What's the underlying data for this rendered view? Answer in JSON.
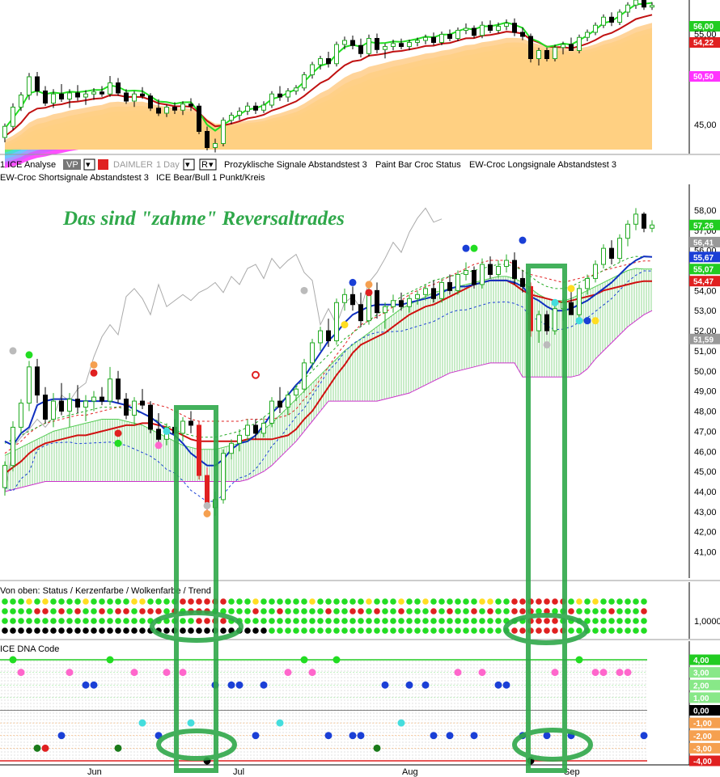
{
  "panels": {
    "top": {
      "y_ticks": [
        "56,00",
        "55,00",
        "50,00",
        "45,00"
      ],
      "price_tags": [
        {
          "text": "56,00",
          "color": "#22cc22"
        },
        {
          "text": "54,22",
          "color": "#e02020"
        },
        {
          "text": "50,50",
          "color": "#ff33ff"
        }
      ]
    },
    "toolbar": {
      "row1": [
        "1 ICE Analyse",
        "VP",
        "DAIMLER",
        "1 Day",
        "R",
        "Prozyklische Signale Abstandstest 3",
        "Paint Bar Croc Status",
        "EW-Croc Longsignale Abstandstest 3"
      ],
      "row2": [
        "EW-Croc Shortsignale Abstandstest 3",
        "ICE Bear/Bull 1 Punkt/Kreis"
      ]
    },
    "main": {
      "annotation": "Das sind \"zahme\" Reversaltrades",
      "y_ticks": [
        "58,00",
        "57,00",
        "56,00",
        "55,00",
        "54,00",
        "53,00",
        "52,00",
        "51,00",
        "50,00",
        "49,00",
        "48,00",
        "47,00",
        "46,00",
        "45,00",
        "44,00",
        "43,00",
        "42,00",
        "41,00"
      ],
      "price_tags": [
        {
          "text": "57,26",
          "color": "#22cc22"
        },
        {
          "text": "56,41",
          "color": "#999999"
        },
        {
          "text": "55,67",
          "color": "#1a3fd6"
        },
        {
          "text": "55,07",
          "color": "#22cc22"
        },
        {
          "text": "54,47",
          "color": "#e02020"
        },
        {
          "text": "51,59",
          "color": "#999999"
        }
      ]
    },
    "status": {
      "title": "Von oben: Status / Kerzenfarbe / Wolkenfarbe / Trend",
      "y_tick": "1,0000"
    },
    "dna": {
      "title": "ICE DNA Code",
      "levels": [
        {
          "text": "4,00",
          "color": "#22cc22"
        },
        {
          "text": "3,00",
          "color": "#88e888"
        },
        {
          "text": "2,00",
          "color": "#88e888"
        },
        {
          "text": "1,00",
          "color": "#88e888"
        },
        {
          "text": "0,00",
          "color": "#000000"
        },
        {
          "text": "-1,00",
          "color": "#f5a050"
        },
        {
          "text": "-2,00",
          "color": "#f5a050"
        },
        {
          "text": "-3,00",
          "color": "#f5a050"
        },
        {
          "text": "-4,00",
          "color": "#e02020"
        }
      ]
    }
  },
  "x_axis": [
    "Jun",
    "Jul",
    "Aug",
    "Sep"
  ],
  "chart_data": {
    "type": "candlestick",
    "ylim_main": [
      40.5,
      58.8
    ],
    "ylim_top": [
      43,
      57
    ],
    "candles": [
      {
        "o": 44.2,
        "h": 45.5,
        "l": 43.8,
        "c": 45.3
      },
      {
        "o": 45.3,
        "h": 47.5,
        "l": 45.0,
        "c": 47.2
      },
      {
        "o": 47.2,
        "h": 48.6,
        "l": 46.9,
        "c": 48.4
      },
      {
        "o": 48.4,
        "h": 50.5,
        "l": 48.0,
        "c": 50.2
      },
      {
        "o": 50.2,
        "h": 50.6,
        "l": 48.4,
        "c": 48.8
      },
      {
        "o": 48.8,
        "h": 49.2,
        "l": 47.4,
        "c": 47.6
      },
      {
        "o": 47.6,
        "h": 48.9,
        "l": 47.2,
        "c": 48.5
      },
      {
        "o": 48.5,
        "h": 49.4,
        "l": 47.8,
        "c": 48.0
      },
      {
        "o": 48.0,
        "h": 48.9,
        "l": 47.2,
        "c": 48.6
      },
      {
        "o": 48.6,
        "h": 49.3,
        "l": 47.9,
        "c": 48.2
      },
      {
        "o": 48.2,
        "h": 48.8,
        "l": 47.5,
        "c": 48.5
      },
      {
        "o": 48.5,
        "h": 49.0,
        "l": 48.0,
        "c": 48.7
      },
      {
        "o": 48.7,
        "h": 49.2,
        "l": 48.3,
        "c": 48.5
      },
      {
        "o": 48.5,
        "h": 50.2,
        "l": 48.3,
        "c": 49.6
      },
      {
        "o": 49.6,
        "h": 50.0,
        "l": 48.4,
        "c": 48.6
      },
      {
        "o": 48.6,
        "h": 48.9,
        "l": 47.6,
        "c": 47.8
      },
      {
        "o": 47.8,
        "h": 48.7,
        "l": 47.3,
        "c": 48.5
      },
      {
        "o": 48.5,
        "h": 49.1,
        "l": 48.1,
        "c": 48.3
      },
      {
        "o": 48.3,
        "h": 48.5,
        "l": 46.9,
        "c": 47.1
      },
      {
        "o": 47.1,
        "h": 47.9,
        "l": 46.4,
        "c": 46.6
      },
      {
        "o": 46.6,
        "h": 47.4,
        "l": 46.3,
        "c": 47.2
      },
      {
        "o": 47.2,
        "h": 47.6,
        "l": 46.6,
        "c": 46.9
      },
      {
        "o": 46.9,
        "h": 47.7,
        "l": 46.5,
        "c": 47.5
      },
      {
        "o": 47.5,
        "h": 48.0,
        "l": 46.9,
        "c": 47.3
      },
      {
        "o": 47.3,
        "h": 47.5,
        "l": 44.6,
        "c": 44.8
      },
      {
        "o": 44.8,
        "h": 45.2,
        "l": 43.0,
        "c": 43.2
      },
      {
        "o": 43.2,
        "h": 44.0,
        "l": 42.8,
        "c": 43.6
      },
      {
        "o": 43.6,
        "h": 46.1,
        "l": 43.4,
        "c": 45.9
      },
      {
        "o": 45.9,
        "h": 46.6,
        "l": 45.6,
        "c": 46.4
      },
      {
        "o": 46.4,
        "h": 47.1,
        "l": 46.0,
        "c": 46.8
      },
      {
        "o": 46.8,
        "h": 47.6,
        "l": 46.5,
        "c": 47.3
      },
      {
        "o": 47.3,
        "h": 47.6,
        "l": 46.6,
        "c": 46.9
      },
      {
        "o": 46.9,
        "h": 47.7,
        "l": 46.7,
        "c": 47.4
      },
      {
        "o": 47.4,
        "h": 48.7,
        "l": 47.2,
        "c": 48.5
      },
      {
        "o": 48.5,
        "h": 49.2,
        "l": 47.9,
        "c": 48.2
      },
      {
        "o": 48.2,
        "h": 49.0,
        "l": 47.8,
        "c": 48.8
      },
      {
        "o": 48.8,
        "h": 49.3,
        "l": 48.5,
        "c": 49.1
      },
      {
        "o": 49.1,
        "h": 50.6,
        "l": 48.9,
        "c": 50.4
      },
      {
        "o": 50.4,
        "h": 51.6,
        "l": 50.1,
        "c": 51.4
      },
      {
        "o": 51.4,
        "h": 52.2,
        "l": 51.0,
        "c": 52.0
      },
      {
        "o": 52.0,
        "h": 52.6,
        "l": 51.2,
        "c": 51.5
      },
      {
        "o": 51.5,
        "h": 53.6,
        "l": 51.3,
        "c": 53.4
      },
      {
        "o": 53.4,
        "h": 54.1,
        "l": 53.0,
        "c": 53.8
      },
      {
        "o": 53.8,
        "h": 54.2,
        "l": 53.0,
        "c": 53.3
      },
      {
        "o": 53.3,
        "h": 53.9,
        "l": 52.2,
        "c": 52.5
      },
      {
        "o": 52.5,
        "h": 54.3,
        "l": 52.3,
        "c": 54.0
      },
      {
        "o": 54.0,
        "h": 54.4,
        "l": 52.6,
        "c": 52.9
      },
      {
        "o": 52.9,
        "h": 53.4,
        "l": 52.1,
        "c": 53.2
      },
      {
        "o": 53.2,
        "h": 53.8,
        "l": 52.9,
        "c": 53.5
      },
      {
        "o": 53.5,
        "h": 53.9,
        "l": 53.0,
        "c": 53.2
      },
      {
        "o": 53.2,
        "h": 53.8,
        "l": 52.9,
        "c": 53.6
      },
      {
        "o": 53.6,
        "h": 54.0,
        "l": 53.3,
        "c": 53.8
      },
      {
        "o": 53.8,
        "h": 54.3,
        "l": 53.5,
        "c": 54.1
      },
      {
        "o": 54.1,
        "h": 54.5,
        "l": 53.4,
        "c": 53.6
      },
      {
        "o": 53.6,
        "h": 54.6,
        "l": 53.4,
        "c": 54.4
      },
      {
        "o": 54.4,
        "h": 54.8,
        "l": 53.8,
        "c": 54.0
      },
      {
        "o": 54.0,
        "h": 55.0,
        "l": 53.8,
        "c": 54.8
      },
      {
        "o": 54.8,
        "h": 55.4,
        "l": 54.5,
        "c": 55.0
      },
      {
        "o": 55.0,
        "h": 55.2,
        "l": 54.1,
        "c": 54.3
      },
      {
        "o": 54.3,
        "h": 55.6,
        "l": 54.1,
        "c": 55.3
      },
      {
        "o": 55.3,
        "h": 55.7,
        "l": 54.6,
        "c": 54.8
      },
      {
        "o": 54.8,
        "h": 55.5,
        "l": 54.6,
        "c": 55.2
      },
      {
        "o": 55.2,
        "h": 55.8,
        "l": 54.9,
        "c": 55.5
      },
      {
        "o": 55.5,
        "h": 55.9,
        "l": 54.3,
        "c": 54.6
      },
      {
        "o": 54.6,
        "h": 55.0,
        "l": 53.9,
        "c": 54.2
      },
      {
        "o": 54.2,
        "h": 54.4,
        "l": 51.7,
        "c": 52.0
      },
      {
        "o": 52.0,
        "h": 53.0,
        "l": 51.4,
        "c": 52.8
      },
      {
        "o": 52.8,
        "h": 53.0,
        "l": 51.8,
        "c": 52.0
      },
      {
        "o": 52.0,
        "h": 53.3,
        "l": 51.8,
        "c": 53.1
      },
      {
        "o": 53.1,
        "h": 53.6,
        "l": 52.5,
        "c": 53.4
      },
      {
        "o": 53.4,
        "h": 54.0,
        "l": 52.9,
        "c": 52.8
      },
      {
        "o": 52.8,
        "h": 54.3,
        "l": 52.6,
        "c": 54.1
      },
      {
        "o": 54.1,
        "h": 54.8,
        "l": 53.8,
        "c": 54.6
      },
      {
        "o": 54.6,
        "h": 55.5,
        "l": 54.4,
        "c": 55.3
      },
      {
        "o": 55.3,
        "h": 56.3,
        "l": 55.1,
        "c": 56.1
      },
      {
        "o": 56.1,
        "h": 56.5,
        "l": 55.3,
        "c": 55.6
      },
      {
        "o": 55.6,
        "h": 56.8,
        "l": 55.4,
        "c": 56.6
      },
      {
        "o": 56.6,
        "h": 57.5,
        "l": 56.2,
        "c": 57.3
      },
      {
        "o": 57.3,
        "h": 58.1,
        "l": 57.0,
        "c": 57.8
      },
      {
        "o": 57.8,
        "h": 57.9,
        "l": 56.9,
        "c": 57.1
      },
      {
        "o": 57.1,
        "h": 57.5,
        "l": 56.9,
        "c": 57.26
      }
    ],
    "main_lines": {
      "blue_solid": [
        46.5,
        46.3,
        46.9,
        47.2,
        48.3,
        48.5,
        48.6,
        48.6,
        48.6,
        48.5,
        48.5,
        48.5,
        48.5,
        48.5,
        48.4,
        48.3,
        48.1,
        47.9,
        47.7,
        47.4,
        47.0,
        46.8,
        46.4,
        45.9,
        45.6,
        45.3,
        45.3,
        45.6,
        46.1,
        46.4,
        46.5,
        46.8,
        47.3,
        47.9,
        48.3,
        48.8,
        49.3,
        49.7,
        50.3,
        50.9,
        51.5,
        51.9,
        52.4,
        52.8,
        53.0,
        53.2,
        53.3,
        53.3,
        53.3,
        53.3,
        53.4,
        53.5,
        53.6,
        53.7,
        53.9,
        54.1,
        54.2,
        54.2,
        54.3,
        54.4,
        54.5,
        54.5,
        54.5,
        54.4,
        54.2,
        53.7,
        53.5,
        53.2,
        53.0,
        53.0,
        53.1,
        53.3,
        53.5,
        53.8,
        54.1,
        54.4,
        54.8,
        55.2,
        55.5,
        55.7,
        55.67
      ],
      "red_solid": [
        44.9,
        45.2,
        45.5,
        45.9,
        46.2,
        46.4,
        46.5,
        46.6,
        46.7,
        46.8,
        46.8,
        46.9,
        47.0,
        47.1,
        47.2,
        47.3,
        47.3,
        47.4,
        47.4,
        47.3,
        47.2,
        47.0,
        46.8,
        46.6,
        46.5,
        46.5,
        46.5,
        46.5,
        46.5,
        46.5,
        46.6,
        46.6,
        46.6,
        46.6,
        46.7,
        46.8,
        47.1,
        47.6,
        48.0,
        48.6,
        49.2,
        49.8,
        50.3,
        50.9,
        51.3,
        51.5,
        51.7,
        51.9,
        52.2,
        52.5,
        52.8,
        53.0,
        53.2,
        53.3,
        53.5,
        53.7,
        53.9,
        54.1,
        54.3,
        54.4,
        54.5,
        54.5,
        54.5,
        54.3,
        54.0,
        53.8,
        53.7,
        53.6,
        53.5,
        53.4,
        53.5,
        53.6,
        53.7,
        53.8,
        54.0,
        54.1,
        54.2,
        54.3,
        54.4,
        54.47,
        54.47
      ],
      "cloud_upper": [
        45.8,
        46.0,
        46.2,
        46.4,
        46.6,
        46.8,
        47.0,
        47.1,
        47.2,
        47.3,
        47.4,
        47.5,
        47.6,
        47.6,
        47.6,
        47.5,
        47.4,
        47.3,
        47.1,
        46.9,
        46.7,
        46.5,
        46.3,
        46.2,
        46.1,
        46.1,
        46.1,
        46.2,
        46.3,
        46.4,
        46.6,
        46.8,
        47.1,
        47.4,
        47.8,
        48.2,
        48.6,
        49.0,
        49.4,
        49.8,
        50.2,
        50.6,
        51.0,
        51.3,
        51.6,
        51.9,
        52.2,
        52.5,
        52.8,
        53.1,
        53.3,
        53.5,
        53.7,
        53.9,
        54.0,
        54.1,
        54.2,
        54.3,
        54.4,
        54.5,
        54.6,
        54.7,
        54.7,
        54.6,
        54.4,
        54.1,
        53.8,
        53.6,
        53.5,
        53.5,
        53.6,
        53.8,
        54.0,
        54.2,
        54.4,
        54.6,
        54.8,
        55.0,
        55.1,
        55.07,
        55.07
      ],
      "cloud_lower": [
        44.0,
        44.1,
        44.2,
        44.3,
        44.4,
        44.5,
        44.5,
        44.5,
        44.5,
        44.5,
        44.5,
        44.5,
        44.5,
        44.5,
        44.5,
        44.5,
        44.5,
        44.5,
        44.5,
        44.5,
        44.5,
        44.5,
        44.5,
        44.5,
        44.5,
        44.5,
        44.5,
        44.5,
        44.5,
        44.5,
        44.6,
        44.8,
        45.0,
        45.3,
        45.7,
        46.1,
        46.5,
        47.0,
        47.5,
        48.0,
        48.5,
        48.5,
        48.5,
        48.5,
        48.5,
        48.5,
        48.5,
        48.6,
        48.7,
        48.8,
        48.9,
        49.1,
        49.3,
        49.5,
        49.7,
        49.9,
        50.0,
        50.1,
        50.2,
        50.3,
        50.4,
        50.4,
        50.4,
        50.4,
        49.7,
        49.7,
        49.7,
        49.7,
        49.7,
        49.7,
        49.7,
        49.8,
        50.1,
        50.6,
        51.0,
        51.4,
        51.8,
        52.2,
        52.5,
        52.8,
        53.0
      ]
    }
  }
}
